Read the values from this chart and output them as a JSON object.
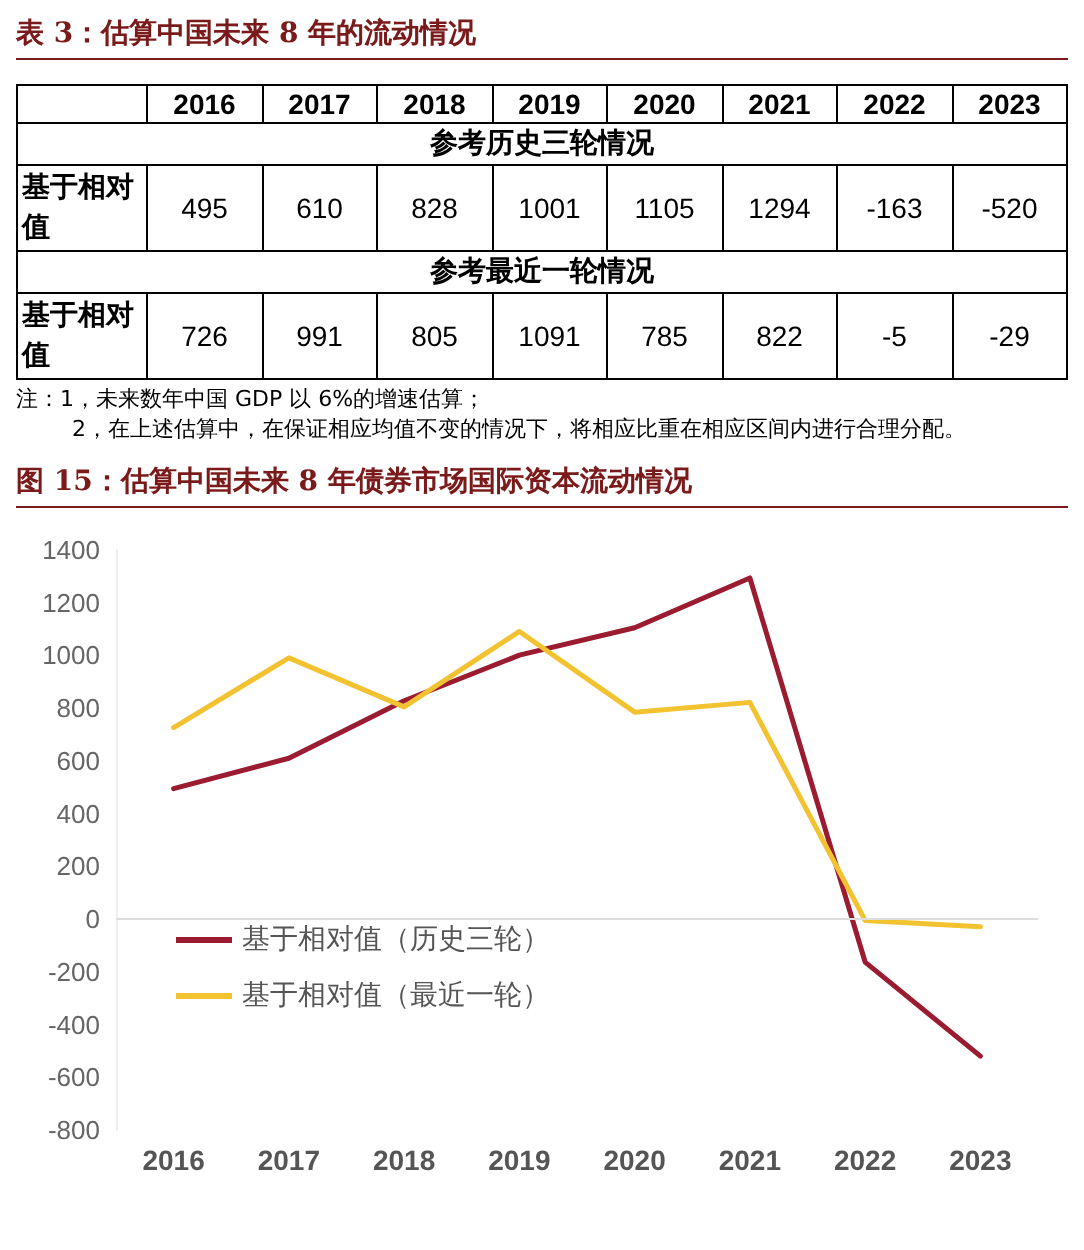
{
  "chart_data": {
    "type": "line",
    "title": "图 15：估算中国未来 8 年债券市场国际资本流动情况",
    "categories": [
      "2016",
      "2017",
      "2018",
      "2019",
      "2020",
      "2021",
      "2022",
      "2023"
    ],
    "series": [
      {
        "name": "基于相对值（历史三轮）",
        "color": "#9b1b30",
        "values": [
          495,
          610,
          828,
          1001,
          1105,
          1294,
          -163,
          -520
        ]
      },
      {
        "name": "基于相对值（最近一轮）",
        "color": "#f2c230",
        "values": [
          726,
          991,
          805,
          1091,
          785,
          822,
          -5,
          -29
        ]
      }
    ],
    "ylim": [
      -800,
      1400
    ],
    "yticks": [
      -800,
      -600,
      -400,
      -200,
      0,
      200,
      400,
      600,
      800,
      1000,
      1200,
      1400
    ],
    "ref_lines": [
      {
        "axis": "y",
        "value": 0,
        "color": "#dddddd"
      }
    ],
    "grid": false,
    "legend": "bottom left",
    "marker": "none",
    "line_style": "solid",
    "data_labels": true,
    "annotations": [
      "表 3：估算中国未来 8 年的流动情况",
      "参考历史三轮情况",
      "基于相对值",
      "参考最近一轮情况",
      "基于相对值",
      "注：1，未来数年中国 GDP 以 6%的增速估算；",
      "2，在上述估算中，在保证相应均值不变的情况下，将相应比重在相应区间内进行合理分配。"
    ]
  }
}
